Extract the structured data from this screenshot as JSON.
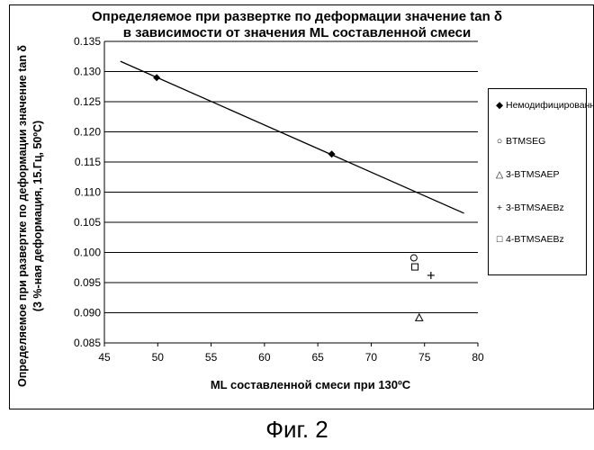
{
  "caption": "Фиг. 2",
  "chart_data": {
    "type": "scatter",
    "title": "Определяемое при развертке по деформации значение tan δ",
    "subtitle": "в зависимости от значения ML составленной смеси",
    "xlabel": "ML составленной смеси при 130ºC",
    "ylabel_line1": "Определяемое при развертке по деформации значение tan δ",
    "ylabel_line2": "(3 %-ная деформация, 15.Гц, 50ºC)",
    "xlim": [
      45,
      80
    ],
    "ylim": [
      0.085,
      0.135
    ],
    "x_ticks": [
      "45",
      "50",
      "55",
      "60",
      "65",
      "70",
      "75",
      "80"
    ],
    "y_ticks": [
      "0.085",
      "0.090",
      "0.095",
      "0.100",
      "0.105",
      "0.110",
      "0.115",
      "0.120",
      "0.125",
      "0.130",
      "0.135"
    ],
    "grid": "horizontal",
    "legend_position": "right",
    "series": [
      {
        "name": "Немодифицированный",
        "marker": "diamond-filled",
        "points": [
          [
            49.9,
            0.129
          ],
          [
            66.3,
            0.1163
          ]
        ]
      },
      {
        "name": "BTMSEG",
        "marker": "circle-open",
        "points": [
          [
            74.0,
            0.0991
          ]
        ]
      },
      {
        "name": "3-BTMSAEP",
        "marker": "triangle-open",
        "points": [
          [
            74.5,
            0.0892
          ]
        ]
      },
      {
        "name": "3-BTMSAEBz",
        "marker": "plus",
        "points": [
          [
            75.6,
            0.0962
          ]
        ]
      },
      {
        "name": "4-BTMSAEBz",
        "marker": "square-open",
        "points": [
          [
            74.1,
            0.0976
          ]
        ]
      }
    ],
    "trendline": {
      "series": "Немодифицированный",
      "x": [
        46.5,
        78.7
      ],
      "y": [
        0.1317,
        0.1065
      ]
    }
  }
}
